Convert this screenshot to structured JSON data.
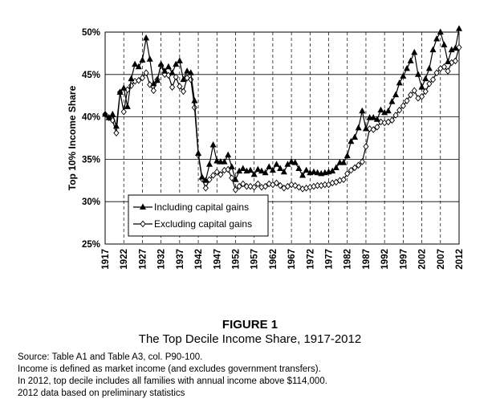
{
  "figure": {
    "number": "FIGURE 1",
    "title": "The Top Decile Income Share, 1917-2012"
  },
  "notes": [
    "Source: Table A1 and Table A3, col. P90-100.",
    "Income is defined as market income (and excludes government transfers).",
    "In 2012, top decile includes all families with annual income above $114,000.",
    "2012 data based on preliminary statistics"
  ],
  "chart_data": {
    "type": "line",
    "title": "",
    "xlabel": "",
    "ylabel": "Top 10% Income Share",
    "xlim": [
      1917,
      2012
    ],
    "ylim": [
      25,
      50
    ],
    "x_ticks": [
      "1917",
      "1922",
      "1927",
      "1932",
      "1937",
      "1942",
      "1947",
      "1952",
      "1957",
      "1962",
      "1967",
      "1972",
      "1977",
      "1982",
      "1987",
      "1992",
      "1997",
      "2002",
      "2007",
      "2012"
    ],
    "y_ticks": [
      "25%",
      "30%",
      "35%",
      "40%",
      "45%",
      "50%"
    ],
    "grid": "vertical dashed lines at x ticks, horizontal solid lines at y ticks",
    "legend_position": "lower-left inside plot",
    "x": [
      1917,
      1918,
      1919,
      1920,
      1921,
      1922,
      1923,
      1924,
      1925,
      1926,
      1927,
      1928,
      1929,
      1930,
      1931,
      1932,
      1933,
      1934,
      1935,
      1936,
      1937,
      1938,
      1939,
      1940,
      1941,
      1942,
      1943,
      1944,
      1945,
      1946,
      1947,
      1948,
      1949,
      1950,
      1951,
      1952,
      1953,
      1954,
      1955,
      1956,
      1957,
      1958,
      1959,
      1960,
      1961,
      1962,
      1963,
      1964,
      1965,
      1966,
      1967,
      1968,
      1969,
      1970,
      1971,
      1972,
      1973,
      1974,
      1975,
      1976,
      1977,
      1978,
      1979,
      1980,
      1981,
      1982,
      1983,
      1984,
      1985,
      1986,
      1987,
      1988,
      1989,
      1990,
      1991,
      1992,
      1993,
      1994,
      1995,
      1996,
      1997,
      1998,
      1999,
      2000,
      2001,
      2002,
      2003,
      2004,
      2005,
      2006,
      2007,
      2008,
      2009,
      2010,
      2011,
      2012
    ],
    "series": [
      {
        "name": "Including capital gains",
        "marker": "filled-triangle",
        "values": [
          40.3,
          39.9,
          40.3,
          38.9,
          42.9,
          43.4,
          41.2,
          44.5,
          46.2,
          45.9,
          46.7,
          49.3,
          46.8,
          43.9,
          44.3,
          46.2,
          45.4,
          45.9,
          45.2,
          46.2,
          46.6,
          44.4,
          45.4,
          45.2,
          41.9,
          35.7,
          32.9,
          32.5,
          34.4,
          36.7,
          34.8,
          34.7,
          34.7,
          35.5,
          34.1,
          32.6,
          33.6,
          33.9,
          33.6,
          33.7,
          33.2,
          33.8,
          33.6,
          33.4,
          34.1,
          33.7,
          34.4,
          33.9,
          33.5,
          34.4,
          34.7,
          34.6,
          33.9,
          33.1,
          33.7,
          33.4,
          33.5,
          33.4,
          33.3,
          33.4,
          33.5,
          33.6,
          34.0,
          34.6,
          34.6,
          35.4,
          37.1,
          37.6,
          38.7,
          40.7,
          38.6,
          39.9,
          39.9,
          39.7,
          40.8,
          40.5,
          40.7,
          41.8,
          42.6,
          44.0,
          44.8,
          45.7,
          46.6,
          47.6,
          45.0,
          43.5,
          44.5,
          45.7,
          47.9,
          49.2,
          50.0,
          48.5,
          46.5,
          47.9,
          48.1,
          50.4
        ]
      },
      {
        "name": "Excluding capital gains",
        "marker": "open-diamond",
        "values": [
          40.3,
          39.9,
          39.6,
          38.1,
          42.9,
          40.6,
          43.2,
          43.7,
          44.2,
          44.3,
          44.6,
          45.2,
          43.8,
          43.1,
          44.4,
          46.1,
          45.0,
          44.9,
          43.5,
          44.7,
          43.6,
          43.0,
          44.6,
          44.4,
          41.1,
          35.5,
          32.7,
          31.6,
          32.6,
          33.1,
          33.5,
          33.2,
          33.7,
          33.8,
          32.8,
          31.4,
          31.8,
          32.1,
          31.8,
          31.8,
          31.7,
          32.1,
          31.7,
          31.8,
          32.1,
          32.0,
          32.2,
          31.9,
          31.6,
          31.8,
          32.0,
          31.9,
          31.7,
          31.5,
          31.6,
          31.7,
          31.8,
          31.9,
          31.9,
          32.0,
          32.0,
          32.2,
          32.3,
          32.5,
          32.6,
          33.3,
          33.7,
          34.0,
          34.3,
          34.7,
          36.5,
          38.6,
          38.5,
          38.8,
          39.4,
          39.3,
          39.4,
          39.6,
          40.2,
          40.8,
          41.3,
          41.9,
          42.6,
          43.1,
          42.2,
          42.4,
          43.0,
          43.9,
          44.4,
          45.2,
          45.7,
          45.9,
          45.4,
          46.4,
          46.6,
          48.2
        ]
      }
    ]
  }
}
